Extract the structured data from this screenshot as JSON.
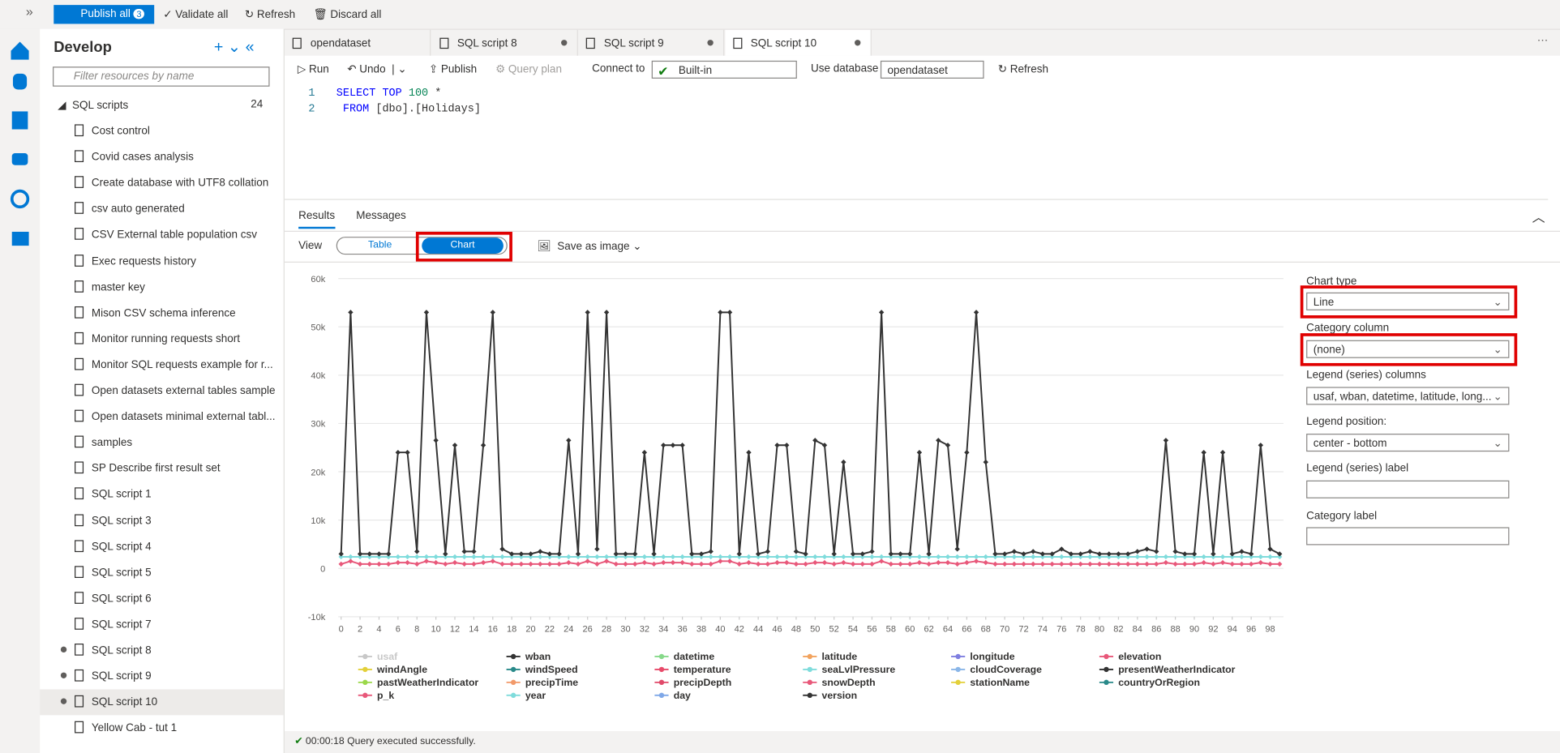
{
  "toolbar": {
    "publish_all": "Publish all",
    "publish_count": "3",
    "validate_all": "Validate all",
    "refresh": "Refresh",
    "discard_all": "Discard all"
  },
  "sidebar": {
    "title": "Develop",
    "filter_placeholder": "Filter resources by name",
    "section": "SQL scripts",
    "section_count": "24",
    "scripts": [
      {
        "name": "Cost control"
      },
      {
        "name": "Covid cases analysis"
      },
      {
        "name": "Create database with UTF8 collation"
      },
      {
        "name": "csv auto generated"
      },
      {
        "name": "CSV External table population csv"
      },
      {
        "name": "Exec requests history"
      },
      {
        "name": "master key"
      },
      {
        "name": "Mison CSV schema inference"
      },
      {
        "name": "Monitor running requests short"
      },
      {
        "name": "Monitor SQL requests example for r..."
      },
      {
        "name": "Open datasets external tables sample"
      },
      {
        "name": "Open datasets minimal external tabl..."
      },
      {
        "name": "samples"
      },
      {
        "name": "SP Describe first result set"
      },
      {
        "name": "SQL script 1"
      },
      {
        "name": "SQL script 3"
      },
      {
        "name": "SQL script 4"
      },
      {
        "name": "SQL script 5"
      },
      {
        "name": "SQL script 6"
      },
      {
        "name": "SQL script 7"
      },
      {
        "name": "SQL script 8",
        "modified": true
      },
      {
        "name": "SQL script 9",
        "modified": true
      },
      {
        "name": "SQL script 10",
        "modified": true,
        "selected": true
      },
      {
        "name": "Yellow Cab - tut 1"
      }
    ]
  },
  "tabs": [
    {
      "name": "opendataset"
    },
    {
      "name": "SQL script 8",
      "modified": true
    },
    {
      "name": "SQL script 9",
      "modified": true
    },
    {
      "name": "SQL script 10",
      "modified": true,
      "active": true
    }
  ],
  "editor_toolbar": {
    "run": "Run",
    "undo": "Undo",
    "publish": "Publish",
    "query_plan": "Query plan",
    "connect_to": "Connect to",
    "connection": "Built-in",
    "use_database": "Use database",
    "database": "opendataset",
    "refresh": "Refresh"
  },
  "code": [
    {
      "num": "1",
      "tokens": [
        {
          "t": "SELECT TOP ",
          "k": "kw"
        },
        {
          "t": "100",
          "k": "num"
        },
        {
          "t": " *",
          "k": "op"
        }
      ]
    },
    {
      "num": "2",
      "tokens": [
        {
          "t": " FROM ",
          "k": "kw"
        },
        {
          "t": "[dbo].[Holidays]",
          "k": "id"
        }
      ]
    }
  ],
  "results": {
    "tabs": [
      "Results",
      "Messages"
    ],
    "view": "View",
    "table": "Table",
    "chart_button": "Chart",
    "save_as_image": "Save as image"
  },
  "settings": {
    "chart_type_label": "Chart type",
    "chart_type": "Line",
    "category_column_label": "Category column",
    "category_column": "(none)",
    "legend_columns_label": "Legend (series) columns",
    "legend_columns": "usaf, wban, datetime, latitude, long...",
    "legend_position_label": "Legend position:",
    "legend_position": "center - bottom",
    "legend_label_label": "Legend (series) label",
    "category_label_label": "Category label"
  },
  "chart": {
    "type": "line",
    "xlim": [
      -0.3,
      99.4
    ],
    "ylim": [
      -10000,
      60000
    ],
    "yticks": [
      {
        "value": -10000,
        "label": "-10k"
      },
      0,
      {
        "value": 10000,
        "label": "10k"
      },
      {
        "value": 20000,
        "label": "20k"
      },
      {
        "value": 30000,
        "label": "30k"
      },
      {
        "value": 40000,
        "label": "40k"
      },
      {
        "value": 50000,
        "label": "50k"
      },
      {
        "value": 60000,
        "label": "60k"
      }
    ],
    "xticks": [
      0,
      2,
      4,
      6,
      8,
      10,
      12,
      14,
      16,
      18,
      20,
      22,
      24,
      26,
      28,
      30,
      32,
      34,
      36,
      38,
      40,
      42,
      44,
      46,
      48,
      50,
      52,
      54,
      56,
      58,
      60,
      62,
      64,
      66,
      68,
      70,
      72,
      74,
      76,
      78,
      80,
      82,
      84,
      86,
      88,
      90,
      92,
      94,
      96,
      98
    ],
    "grid": true,
    "series": [
      {
        "name": "usaf",
        "color": "#c4c4c4",
        "hidden": true
      },
      {
        "name": "wban",
        "color": "#333333",
        "values": [
          3000,
          53000,
          3000,
          3000,
          3000,
          3000,
          24000,
          24000,
          3500,
          53000,
          26500,
          3000,
          25500,
          3500,
          3500,
          25500,
          53000,
          4000,
          3000,
          3000,
          3000,
          3500,
          3000,
          3000,
          26500,
          3000,
          53000,
          4000,
          53000,
          3000,
          3000,
          3000,
          24000,
          3000,
          25500,
          25500,
          25500,
          3000,
          3000,
          3500,
          53000,
          53000,
          3000,
          24000,
          3000,
          3500,
          25500,
          25500,
          3500,
          3000,
          26500,
          25500,
          3000,
          22000,
          3000,
          3000,
          3500,
          53000,
          3000,
          3000,
          3000,
          24000,
          3000,
          26500,
          25500,
          4000,
          24000,
          53000,
          22000,
          3000,
          3000,
          3500,
          3000,
          3500,
          3000,
          3000,
          4000,
          3000,
          3000,
          3500,
          3000,
          3000,
          3000,
          3000,
          3500,
          4000,
          3500,
          26500,
          3500,
          3000,
          3000,
          24000,
          3000,
          24000,
          3000,
          3500,
          3000,
          25500,
          4000,
          3000
        ]
      },
      {
        "name": "datetime",
        "color": "#86d98a"
      },
      {
        "name": "latitude",
        "color": "#f2a35e"
      },
      {
        "name": "longitude",
        "color": "#7f7fe0"
      },
      {
        "name": "elevation",
        "color": "#e8587a",
        "values": [
          900,
          1500,
          900,
          900,
          900,
          900,
          1200,
          1200,
          900,
          1500,
          1200,
          900,
          1200,
          900,
          900,
          1200,
          1500,
          900,
          900,
          900,
          900,
          900,
          900,
          900,
          1200,
          900,
          1500,
          900,
          1500,
          900,
          900,
          900,
          1200,
          900,
          1200,
          1200,
          1200,
          900,
          900,
          900,
          1500,
          1500,
          900,
          1200,
          900,
          900,
          1200,
          1200,
          900,
          900,
          1200,
          1200,
          900,
          1200,
          900,
          900,
          900,
          1500,
          900,
          900,
          900,
          1200,
          900,
          1200,
          1200,
          900,
          1200,
          1500,
          1200,
          900,
          900,
          900,
          900,
          900,
          900,
          900,
          900,
          900,
          900,
          900,
          900,
          900,
          900,
          900,
          900,
          900,
          900,
          1200,
          900,
          900,
          900,
          1200,
          900,
          1200,
          900,
          900,
          900,
          1200,
          900,
          900
        ]
      },
      {
        "name": "windAngle",
        "color": "#e3d03a"
      },
      {
        "name": "windSpeed",
        "color": "#2a8a8a"
      },
      {
        "name": "temperature",
        "color": "#e84a6a"
      },
      {
        "name": "seaLvlPressure",
        "color": "#7fdcdc"
      },
      {
        "name": "cloudCoverage",
        "color": "#8ab6e8"
      },
      {
        "name": "presentWeatherIndicator",
        "color": "#333333"
      },
      {
        "name": "pastWeatherIndicator",
        "color": "#9bd84a"
      },
      {
        "name": "precipTime",
        "color": "#f29a6a"
      },
      {
        "name": "precipDepth",
        "color": "#e04a6a"
      },
      {
        "name": "snowDepth",
        "color": "#e8587a"
      },
      {
        "name": "stationName",
        "color": "#e3d03a"
      },
      {
        "name": "countryOrRegion",
        "color": "#2a8a8a"
      },
      {
        "name": "p_k",
        "color": "#e8587a"
      },
      {
        "name": "year",
        "color": "#7fdcdc",
        "values": [
          2400,
          2400,
          2400,
          2400,
          2400,
          2400,
          2400,
          2400,
          2400,
          2400,
          2400,
          2400,
          2400,
          2400,
          2400,
          2400,
          2400,
          2400,
          2400,
          2400,
          2400,
          2400,
          2400,
          2400,
          2400,
          2400,
          2400,
          2400,
          2400,
          2400,
          2400,
          2400,
          2400,
          2400,
          2400,
          2400,
          2400,
          2400,
          2400,
          2400,
          2400,
          2400,
          2400,
          2400,
          2400,
          2400,
          2400,
          2400,
          2400,
          2400,
          2400,
          2400,
          2400,
          2400,
          2400,
          2400,
          2400,
          2400,
          2400,
          2400,
          2400,
          2400,
          2400,
          2400,
          2400,
          2400,
          2400,
          2400,
          2400,
          2400,
          2400,
          2400,
          2400,
          2400,
          2400,
          2400,
          2400,
          2400,
          2400,
          2400,
          2400,
          2400,
          2400,
          2400,
          2400,
          2400,
          2400,
          2400,
          2400,
          2400,
          2400,
          2400,
          2400,
          2400,
          2400,
          2400,
          2400,
          2400,
          2400,
          2400
        ]
      },
      {
        "name": "day",
        "color": "#7fa8e8"
      },
      {
        "name": "version",
        "color": "#333333"
      }
    ]
  },
  "status": "00:00:18 Query executed successfully."
}
